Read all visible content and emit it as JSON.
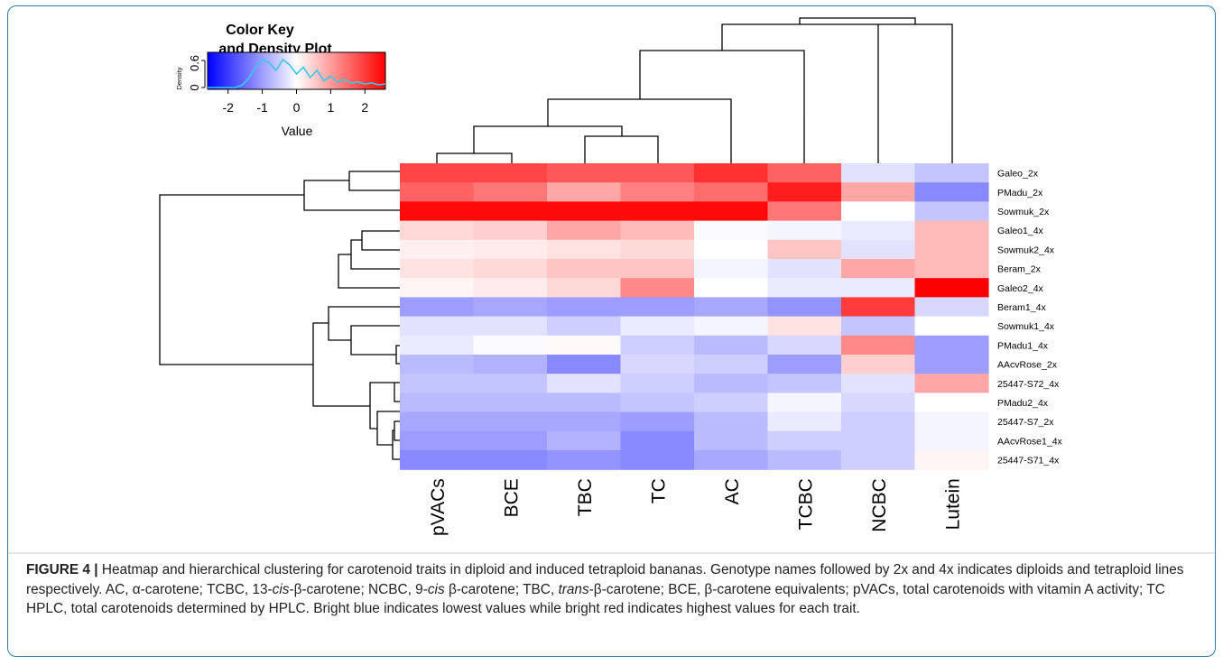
{
  "chart_data": {
    "type": "heatmap",
    "color_key": {
      "title_line1": "Color Key",
      "title_line2": "and Density Plot",
      "density_label": "Density",
      "density_ticks": [
        "0",
        "0.6"
      ],
      "value_label": "Value",
      "value_ticks": [
        "-2",
        "-1",
        "0",
        "1",
        "2"
      ],
      "range": [
        -2.6,
        2.6
      ],
      "low_color": "#0000ff",
      "mid_color": "#ffffff",
      "high_color": "#ff0000",
      "density_line_color": "#36c8e8"
    },
    "columns": [
      "pVACs",
      "BCE",
      "TBC",
      "TC",
      "AC",
      "TCBC",
      "NCBC",
      "Lutein"
    ],
    "rows": [
      "Galeo_2x",
      "PMadu_2x",
      "Sowmuk_2x",
      "Galeo1_4x",
      "Sowmuk2_4x",
      "Beram_2x",
      "Galeo2_4x",
      "Beram1_4x",
      "Sowmuk1_4x",
      "PMadu1_4x",
      "AAcvRose_2x",
      "25447-S72_4x",
      "PMadu2_4x",
      "25447-S7_2x",
      "AAcvRose1_4x",
      "25447-S71_4x"
    ],
    "values": [
      [
        1.9,
        1.9,
        1.7,
        1.7,
        2.1,
        1.6,
        -0.3,
        -0.6
      ],
      [
        1.6,
        1.4,
        0.9,
        1.3,
        1.5,
        2.3,
        0.9,
        -1.2
      ],
      [
        2.5,
        2.5,
        2.5,
        2.5,
        2.5,
        1.4,
        0.0,
        -0.6
      ],
      [
        0.4,
        0.5,
        0.9,
        0.7,
        -0.05,
        -0.1,
        -0.2,
        0.7
      ],
      [
        0.15,
        0.2,
        0.3,
        0.4,
        0.0,
        0.6,
        -0.3,
        0.7
      ],
      [
        0.3,
        0.4,
        0.6,
        0.6,
        -0.1,
        -0.3,
        0.9,
        0.7
      ],
      [
        0.1,
        0.2,
        0.4,
        1.2,
        0.0,
        -0.2,
        -0.2,
        2.6
      ],
      [
        -1.0,
        -0.9,
        -1.0,
        -1.0,
        -0.9,
        -1.1,
        2.0,
        -0.4
      ],
      [
        -0.3,
        -0.3,
        -0.5,
        -0.2,
        -0.1,
        0.3,
        -0.6,
        0.0
      ],
      [
        -0.2,
        -0.05,
        0.05,
        -0.5,
        -0.7,
        -0.4,
        1.2,
        -1.0
      ],
      [
        -0.7,
        -0.8,
        -1.2,
        -0.4,
        -0.5,
        -1.0,
        0.5,
        -1.0
      ],
      [
        -0.6,
        -0.6,
        -0.3,
        -0.5,
        -0.7,
        -0.6,
        -0.3,
        0.9
      ],
      [
        -0.7,
        -0.7,
        -0.7,
        -0.6,
        -0.5,
        -0.1,
        -0.4,
        0.0
      ],
      [
        -0.9,
        -0.9,
        -0.9,
        -1.0,
        -0.7,
        -0.2,
        -0.5,
        -0.1
      ],
      [
        -1.0,
        -1.0,
        -0.8,
        -1.2,
        -0.7,
        -0.5,
        -0.5,
        -0.1
      ],
      [
        -1.2,
        -1.2,
        -1.1,
        -1.2,
        -0.9,
        -0.7,
        -0.5,
        0.1
      ]
    ]
  },
  "caption": {
    "lead": "FIGURE 4 |",
    "p1": " Heatmap and hierarchical clustering for carotenoid traits in diploid and induced tetraploid bananas. Genotype names followed by 2x and 4x indicates diploids and tetraploid lines respectively. AC, α-carotene; TCBC, 13-",
    "i1": "cis",
    "p2": "-β-carotene; NCBC, 9-",
    "i2": "cis",
    "p3": " β-carotene; TBC, ",
    "i3": "trans",
    "p4": "-β-carotene; BCE, β-carotene equivalents; pVACs, total carotenoids with vitamin A activity; TC HPLC, total carotenoids determined by HPLC. Bright blue indicates lowest values while bright red indicates highest values for each trait."
  }
}
